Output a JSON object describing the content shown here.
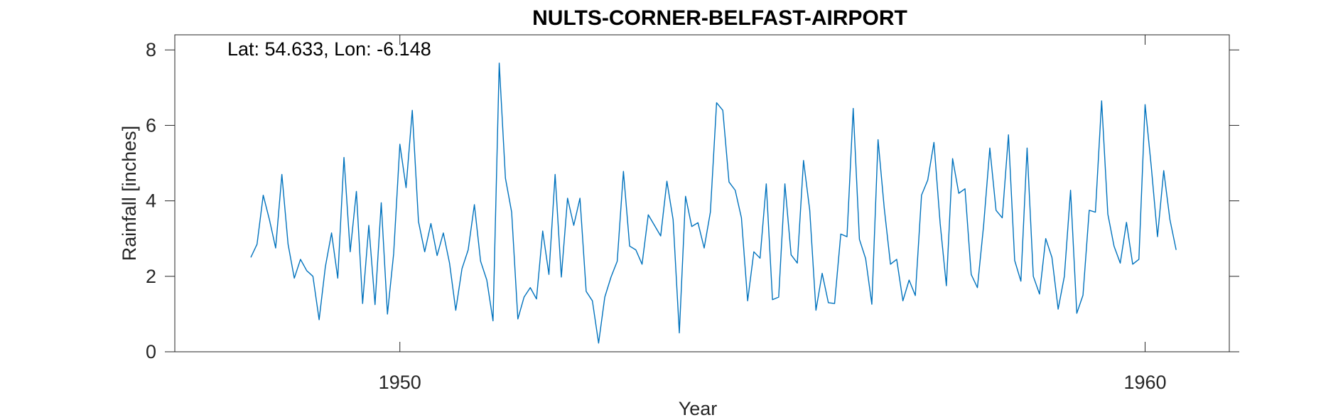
{
  "chart_data": {
    "type": "line",
    "title": "NULTS-CORNER-BELFAST-AIRPORT",
    "xlabel": "Year",
    "ylabel": "Rainfall [inches]",
    "annotation": "Lat: 54.633, Lon: -6.148",
    "xlim": [
      1946.98,
      1961.13
    ],
    "ylim": [
      0,
      8.4
    ],
    "xticks": [
      1950,
      1960
    ],
    "yticks": [
      0,
      2,
      4,
      6,
      8
    ],
    "grid": false,
    "colors": {
      "line": "#0072BD",
      "axes": "#262626"
    },
    "series": [
      {
        "x_start": 1948.0,
        "x_step": 0.083333,
        "values": [
          2.5,
          2.85,
          4.15,
          3.5,
          2.75,
          4.7,
          2.85,
          1.95,
          2.45,
          2.15,
          2.0,
          0.85,
          2.25,
          3.15,
          1.95,
          5.15,
          2.65,
          4.25,
          1.28,
          3.35,
          1.25,
          3.95,
          1.0,
          2.6,
          5.5,
          4.35,
          6.4,
          3.45,
          2.65,
          3.4,
          2.55,
          3.15,
          2.35,
          1.1,
          2.2,
          2.7,
          3.9,
          2.4,
          1.9,
          0.82,
          7.65,
          4.6,
          3.7,
          0.87,
          1.45,
          1.7,
          1.4,
          3.2,
          2.05,
          4.7,
          1.98,
          4.07,
          3.35,
          4.07,
          1.6,
          1.35,
          0.23,
          1.45,
          1.98,
          2.4,
          4.78,
          2.8,
          2.7,
          2.32,
          3.63,
          3.35,
          3.07,
          4.52,
          3.5,
          0.5,
          4.12,
          3.32,
          3.42,
          2.75,
          3.7,
          6.6,
          6.4,
          4.5,
          4.28,
          3.55,
          1.35,
          2.65,
          2.48,
          4.45,
          1.38,
          1.45,
          4.45,
          2.57,
          2.35,
          5.07,
          3.75,
          1.1,
          2.08,
          1.3,
          1.28,
          3.12,
          3.05,
          6.45,
          2.98,
          2.47,
          1.26,
          5.62,
          3.8,
          2.32,
          2.45,
          1.35,
          1.9,
          1.49,
          4.15,
          4.55,
          5.55,
          3.4,
          1.75,
          5.12,
          4.2,
          4.32,
          2.05,
          1.7,
          3.35,
          5.4,
          3.75,
          3.55,
          5.75,
          2.42,
          1.87,
          5.4,
          2.0,
          1.53,
          3.0,
          2.5,
          1.13,
          2.0,
          4.28,
          1.02,
          1.5,
          3.75,
          3.7,
          6.65,
          3.65,
          2.8,
          2.35,
          3.43,
          2.32,
          2.45,
          6.55,
          4.9,
          3.05,
          4.8,
          3.5,
          2.7
        ]
      }
    ]
  }
}
